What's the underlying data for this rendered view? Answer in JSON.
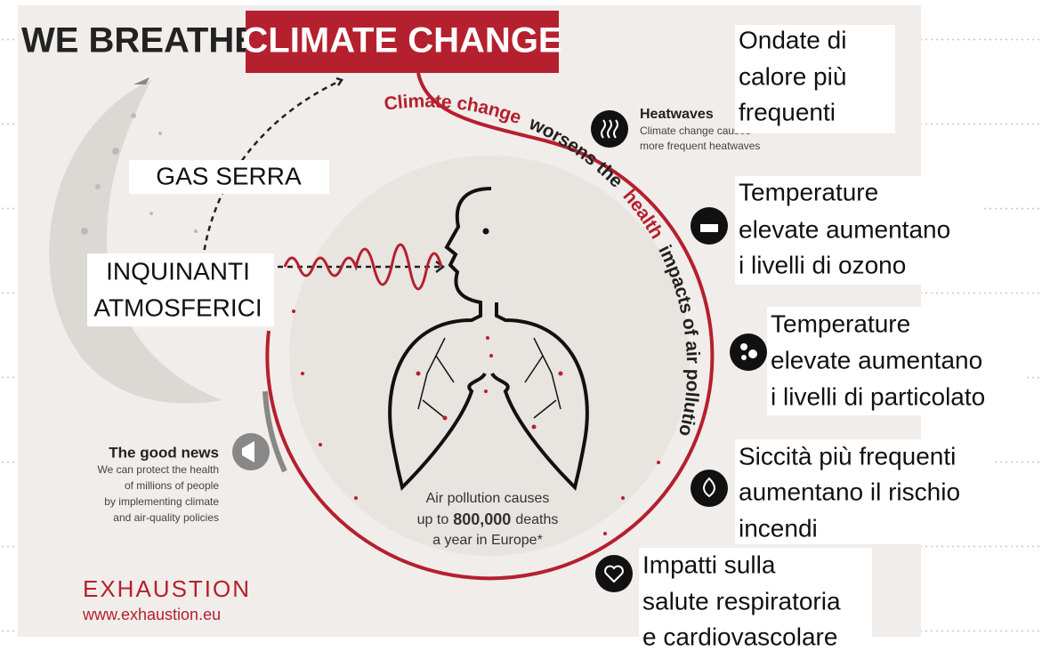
{
  "header": {
    "prefix": "WE BREATHE",
    "title": "CLIMATE CHANGE"
  },
  "arc_text": [
    "Climate change",
    "worsens the",
    "health",
    "impacts of air pollution."
  ],
  "heatwaves": {
    "title": "Heatwaves",
    "description": [
      "Climate change causes",
      "more frequent heatwaves"
    ]
  },
  "labels": {
    "heatwaves": [
      "Ondate di",
      "calore più",
      "frequenti"
    ],
    "ozone": [
      "Temperature",
      "elevate aumentano",
      "i livelli di ozono"
    ],
    "particulate": [
      "Temperature",
      "elevate aumentano",
      "i livelli di particolato"
    ],
    "wildfires": [
      "Siccità più frequenti",
      "aumentano il rischio",
      "incendi"
    ],
    "health": [
      "Impatti sulla",
      "salute respiratoria",
      "e cardiovascolare"
    ],
    "greenhouse_gases": "GAS SERRA",
    "air_pollutants": [
      "INQUINANTI",
      "ATMOSFERICI"
    ]
  },
  "good_news": {
    "title": "The good news",
    "text": [
      "We can protect the health",
      "of millions of people",
      "by implementing climate",
      "and air-quality policies"
    ]
  },
  "center": {
    "line1": "Air pollution causes",
    "before": "up to",
    "figure": "800,000",
    "after": "deaths",
    "line3": "a year in Europe*"
  },
  "footer": {
    "brand": "EXHAUSTION",
    "url": "www.exhaustion.eu"
  }
}
